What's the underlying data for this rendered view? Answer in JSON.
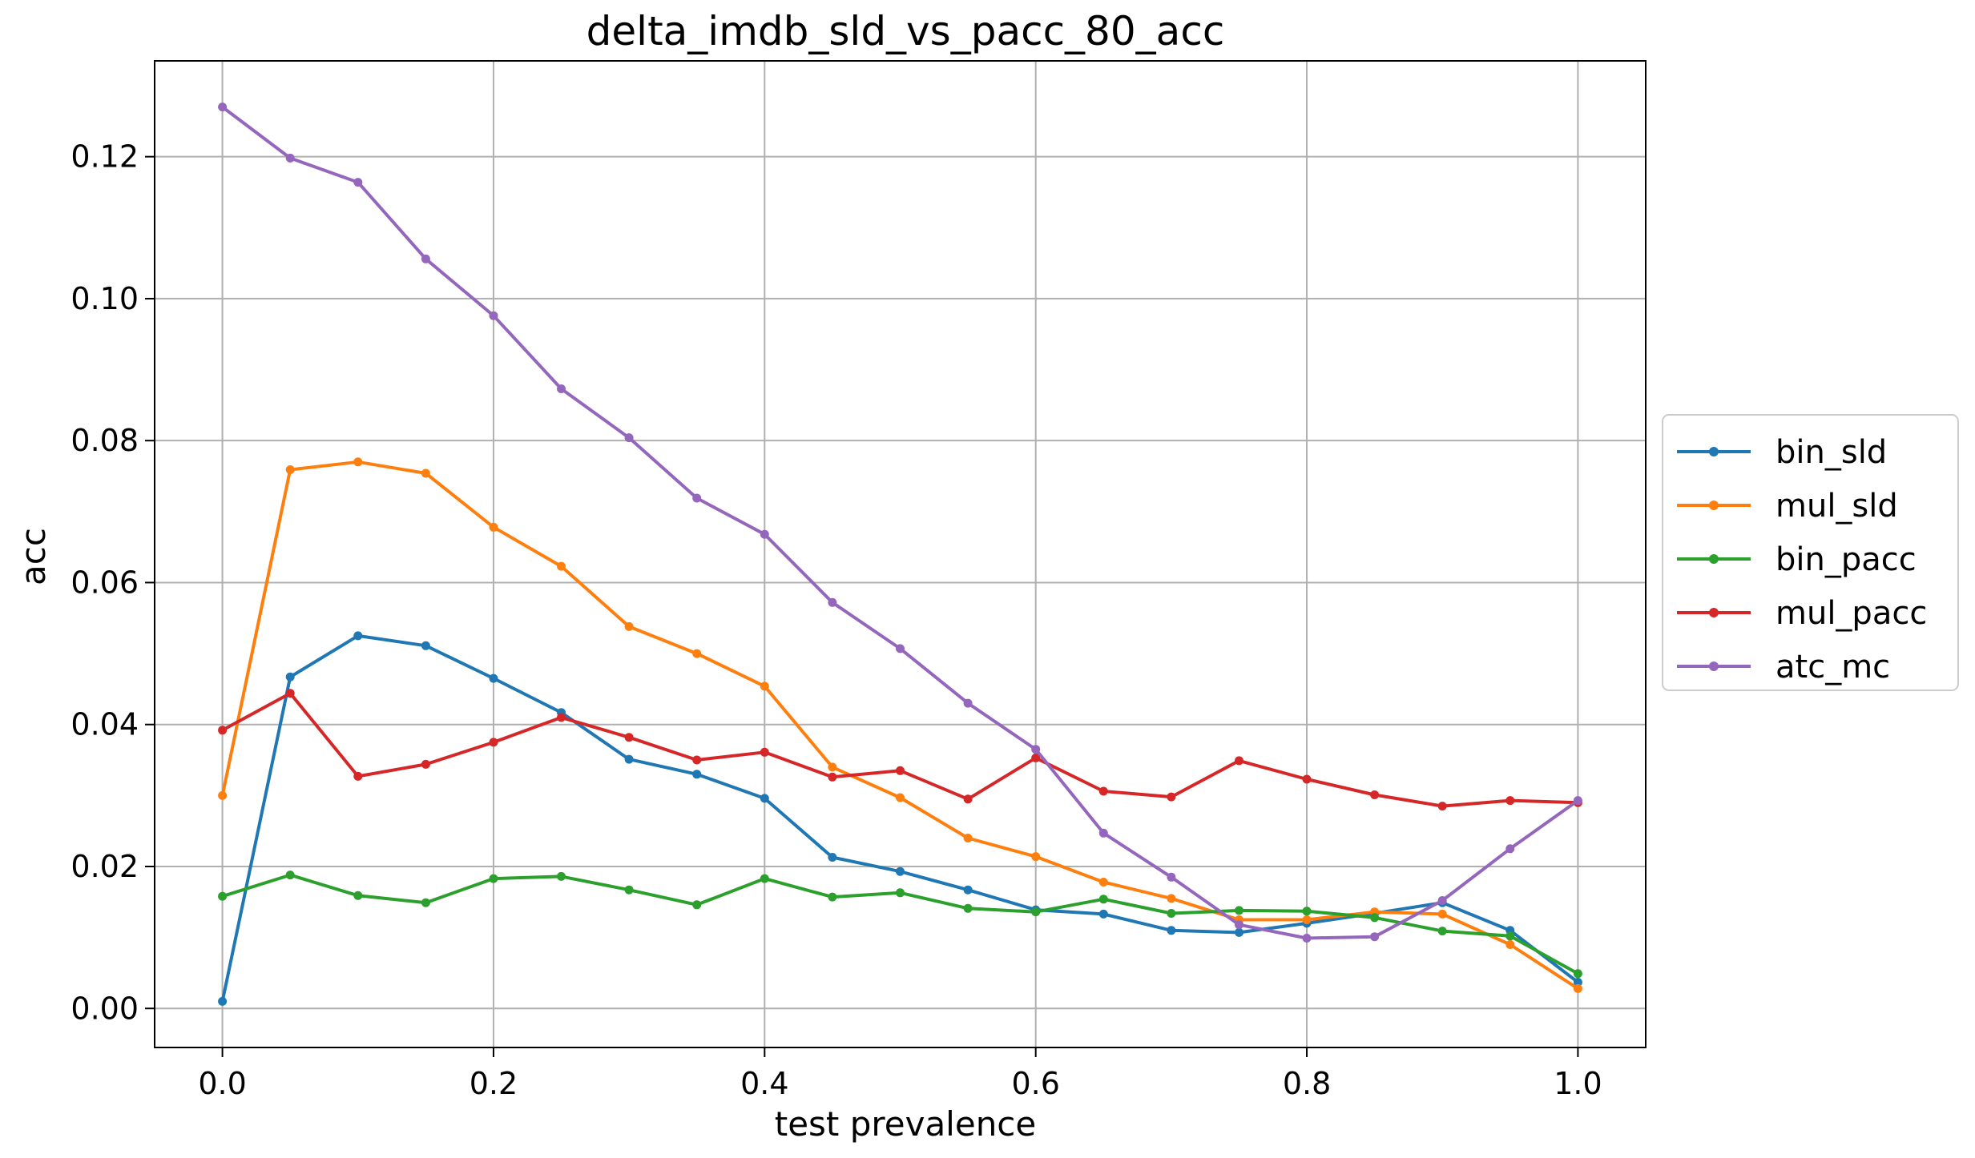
{
  "chart_data": {
    "type": "line",
    "title": "delta_imdb_sld_vs_pacc_80_acc",
    "xlabel": "test prevalence",
    "ylabel": "acc",
    "xlim": [
      -0.05,
      1.05
    ],
    "ylim": [
      -0.0055,
      0.1335
    ],
    "xticks": [
      0.0,
      0.2,
      0.4,
      0.6,
      0.8,
      1.0
    ],
    "xtick_labels": [
      "0.0",
      "0.2",
      "0.4",
      "0.6",
      "0.8",
      "1.0"
    ],
    "yticks": [
      0.0,
      0.02,
      0.04,
      0.06,
      0.08,
      0.1,
      0.12
    ],
    "ytick_labels": [
      "0.00",
      "0.02",
      "0.04",
      "0.06",
      "0.08",
      "0.10",
      "0.12"
    ],
    "grid": true,
    "legend_position": "center-right, outside plot",
    "x": [
      0.0,
      0.05,
      0.1,
      0.15,
      0.2,
      0.25,
      0.3,
      0.35,
      0.4,
      0.45,
      0.5,
      0.55,
      0.6,
      0.65,
      0.7,
      0.75,
      0.8,
      0.85,
      0.9,
      0.95,
      1.0
    ],
    "series": [
      {
        "name": "bin_sld",
        "color": "#1f77b4",
        "values": [
          0.001,
          0.0467,
          0.0525,
          0.0511,
          0.0465,
          0.0417,
          0.0351,
          0.033,
          0.0296,
          0.0213,
          0.0193,
          0.0167,
          0.0139,
          0.0133,
          0.011,
          0.0107,
          0.012,
          0.0134,
          0.0149,
          0.011,
          0.0037
        ]
      },
      {
        "name": "mul_sld",
        "color": "#ff7f0e",
        "values": [
          0.03,
          0.0759,
          0.077,
          0.0754,
          0.0678,
          0.0623,
          0.0538,
          0.05,
          0.0454,
          0.034,
          0.0297,
          0.024,
          0.0214,
          0.0178,
          0.0155,
          0.0125,
          0.0125,
          0.0136,
          0.0133,
          0.009,
          0.0028
        ]
      },
      {
        "name": "bin_pacc",
        "color": "#2ca02c",
        "values": [
          0.0158,
          0.0188,
          0.0159,
          0.0149,
          0.0183,
          0.0186,
          0.0167,
          0.0146,
          0.0183,
          0.0157,
          0.0163,
          0.0141,
          0.0136,
          0.0154,
          0.0134,
          0.0138,
          0.0137,
          0.0128,
          0.0109,
          0.0102,
          0.0049
        ]
      },
      {
        "name": "mul_pacc",
        "color": "#d62728",
        "values": [
          0.0392,
          0.0444,
          0.0327,
          0.0344,
          0.0375,
          0.041,
          0.0382,
          0.035,
          0.0361,
          0.0326,
          0.0335,
          0.0295,
          0.0353,
          0.0306,
          0.0298,
          0.0349,
          0.0323,
          0.0301,
          0.0285,
          0.0293,
          0.029
        ]
      },
      {
        "name": "atc_mc",
        "color": "#9467bd",
        "values": [
          0.127,
          0.1198,
          0.1164,
          0.1056,
          0.0976,
          0.0873,
          0.0804,
          0.0719,
          0.0668,
          0.0572,
          0.0507,
          0.043,
          0.0365,
          0.0247,
          0.0185,
          0.0118,
          0.0099,
          0.0101,
          0.0152,
          0.0225,
          0.0293
        ]
      }
    ]
  }
}
